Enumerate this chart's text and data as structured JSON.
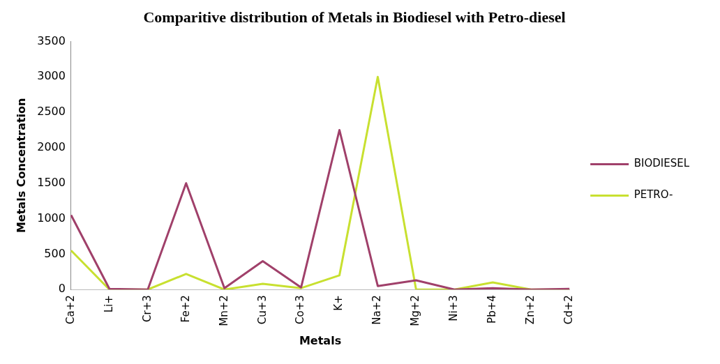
{
  "chart_data": {
    "type": "line",
    "title": "Comparitive distribution of Metals in Biodiesel with Petro-diesel",
    "xlabel": "Metals",
    "ylabel": "Metals Concentration",
    "categories": [
      "Ca+2",
      "Li+",
      "Cr+3",
      "Fe+2",
      "Mn+2",
      "Cu+3",
      "Co+3",
      "K+",
      "Na+2",
      "Mg+2",
      "Ni+3",
      "Pb+4",
      "Zn+2",
      "Cd+2"
    ],
    "series": [
      {
        "name": "BIODIESEL",
        "color": "#a0406a",
        "values": [
          1050,
          10,
          0,
          1500,
          20,
          400,
          30,
          2250,
          50,
          130,
          0,
          20,
          0,
          10
        ]
      },
      {
        "name": "PETRO-",
        "color": "#c8e030",
        "values": [
          550,
          0,
          0,
          220,
          0,
          80,
          20,
          200,
          3000,
          0,
          0,
          100,
          0,
          0
        ]
      }
    ],
    "ylim": [
      0,
      3500
    ],
    "yticks": [
      0,
      500,
      1000,
      1500,
      2000,
      2500,
      3000,
      3500
    ],
    "grid": false,
    "legend": "right",
    "marker": "none"
  }
}
